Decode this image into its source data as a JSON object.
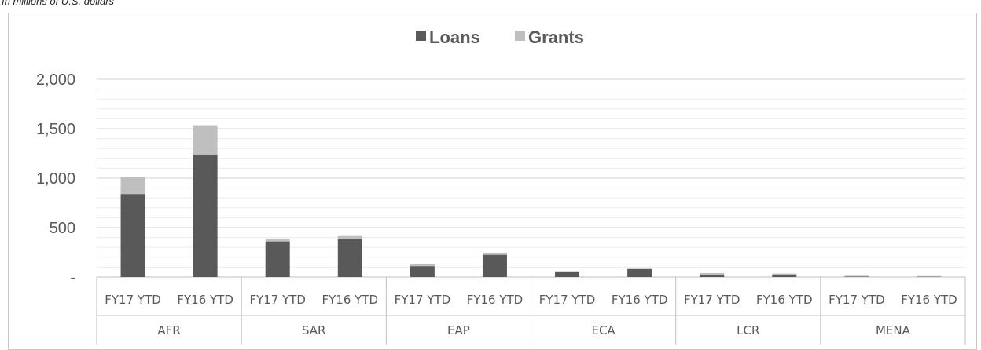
{
  "subtitle": "In millions of U.S. dollars",
  "chart_data": {
    "type": "bar",
    "stacked": true,
    "title": "",
    "xlabel": "",
    "ylabel": "",
    "ylim": [
      0,
      2000
    ],
    "yticks": [
      {
        "value": 0,
        "label": "-"
      },
      {
        "value": 500,
        "label": "500"
      },
      {
        "value": 1000,
        "label": "1,000"
      },
      {
        "value": 1500,
        "label": "1,500"
      },
      {
        "value": 2000,
        "label": "2,000"
      }
    ],
    "grid": true,
    "legend_position": "top-center",
    "groups": [
      "AFR",
      "SAR",
      "EAP",
      "ECA",
      "LCR",
      "MENA"
    ],
    "categories": [
      "FY17 YTD",
      "FY16 YTD",
      "FY17 YTD",
      "FY16 YTD",
      "FY17 YTD",
      "FY16 YTD",
      "FY17 YTD",
      "FY16 YTD",
      "FY17 YTD",
      "FY16 YTD",
      "FY17 YTD",
      "FY16 YTD"
    ],
    "series": [
      {
        "name": "Loans",
        "color": "#595959",
        "values": [
          840,
          1240,
          360,
          385,
          110,
          225,
          55,
          80,
          25,
          22,
          5,
          3
        ]
      },
      {
        "name": "Grants",
        "color": "#bfbfbf",
        "values": [
          170,
          295,
          30,
          30,
          25,
          22,
          5,
          5,
          15,
          13,
          8,
          7
        ]
      }
    ]
  }
}
